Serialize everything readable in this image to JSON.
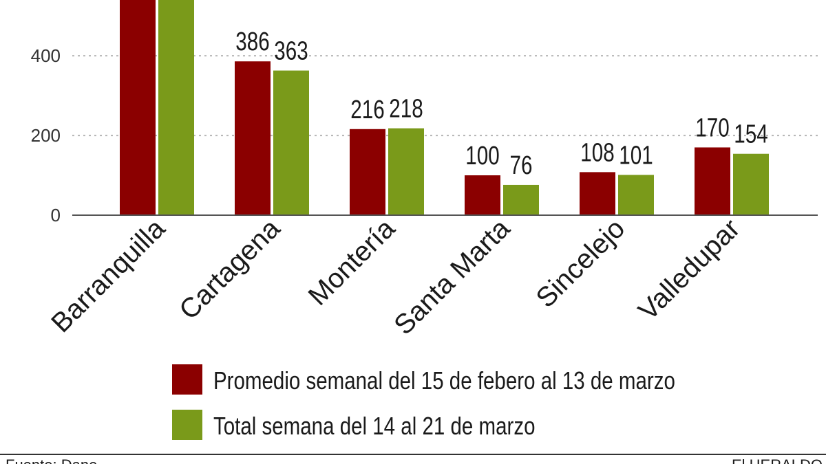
{
  "chart_data": {
    "type": "bar",
    "categories": [
      "Barranquilla",
      "Cartagena",
      "Montería",
      "Santa Marta",
      "Sincelejo",
      "Valledupar"
    ],
    "series": [
      {
        "name": "Promedio semanal del 15 de febero al 13 de marzo",
        "values": [
          null,
          386,
          216,
          100,
          108,
          170
        ],
        "labels": [
          "",
          "386",
          "216",
          "100",
          "108",
          "170"
        ],
        "color": "#8b0000"
      },
      {
        "name": "Total semana del 14 al 21 de marzo",
        "values": [
          null,
          363,
          218,
          76,
          101,
          154
        ],
        "labels": [
          "",
          "363",
          "218",
          "76",
          "101",
          "154"
        ],
        "color": "#7a9a1a"
      }
    ],
    "yticks": [
      0,
      200,
      400
    ],
    "ytick_labels": [
      "0",
      "200",
      "400"
    ],
    "ylim": [
      0,
      540
    ],
    "grid": true,
    "legend_position": "bottom",
    "title": "",
    "xlabel": "",
    "ylabel": ""
  },
  "footer": {
    "source": "Fuente: Dane",
    "brand": "El HERALDO"
  }
}
